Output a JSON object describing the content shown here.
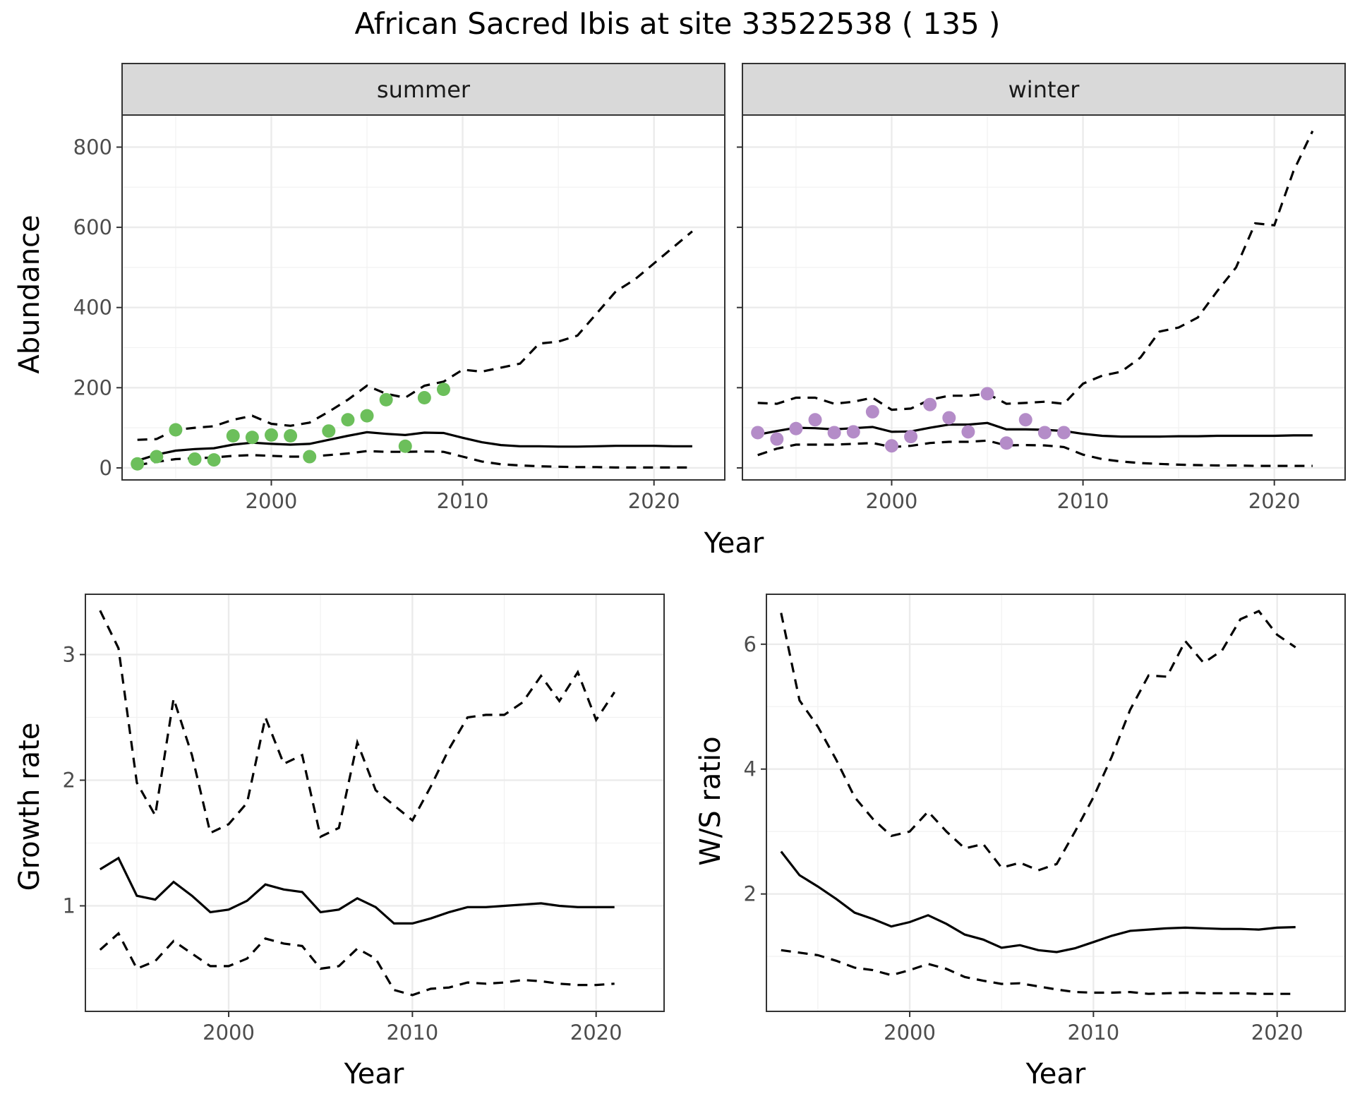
{
  "title": "African Sacred Ibis at site 33522538 ( 135 )",
  "chart_data": [
    {
      "id": "abundance-summer",
      "type": "line",
      "facet": "summer",
      "xlabel": "Year",
      "ylabel": "Abundance",
      "xlim": [
        1992.2,
        2023.7
      ],
      "ylim": [
        -30,
        880
      ],
      "xticks": [
        2000,
        2010,
        2020
      ],
      "yticks": [
        0,
        200,
        400,
        600,
        800
      ],
      "point_color": "#6cbf5b",
      "points": {
        "x": [
          1993,
          1994,
          1995,
          1996,
          1997,
          1998,
          1999,
          2000,
          2001,
          2002,
          2003,
          2004,
          2005,
          2006,
          2007,
          2008,
          2009
        ],
        "y": [
          10,
          28,
          95,
          22,
          20,
          80,
          76,
          82,
          80,
          28,
          92,
          120,
          130,
          170,
          54,
          175,
          196
        ]
      },
      "x": [
        1993,
        1994,
        1995,
        1996,
        1997,
        1998,
        1999,
        2000,
        2001,
        2002,
        2003,
        2004,
        2005,
        2006,
        2007,
        2008,
        2009,
        2010,
        2011,
        2012,
        2013,
        2014,
        2015,
        2016,
        2017,
        2018,
        2019,
        2020,
        2021,
        2022
      ],
      "series": [
        {
          "role": "estimate",
          "values": [
            18,
            33,
            43,
            47,
            49,
            58,
            63,
            60,
            58,
            60,
            70,
            80,
            89,
            85,
            82,
            88,
            87,
            75,
            64,
            57,
            54,
            54,
            53,
            53,
            54,
            55,
            55,
            55,
            54,
            54
          ]
        },
        {
          "role": "upper",
          "values": [
            70,
            72,
            95,
            100,
            104,
            120,
            130,
            110,
            105,
            113,
            140,
            170,
            205,
            185,
            175,
            205,
            215,
            245,
            240,
            250,
            260,
            310,
            315,
            330,
            385,
            440,
            470,
            510,
            550,
            590
          ]
        },
        {
          "role": "lower",
          "values": [
            7,
            15,
            22,
            24,
            26,
            30,
            32,
            30,
            28,
            28,
            32,
            36,
            42,
            40,
            40,
            41,
            40,
            28,
            16,
            9,
            6,
            4,
            3,
            2,
            2,
            1,
            1,
            1,
            1,
            1
          ]
        }
      ]
    },
    {
      "id": "abundance-winter",
      "type": "line",
      "facet": "winter",
      "xlabel": "Year",
      "ylabel": "Abundance",
      "xlim": [
        1992.2,
        2023.7
      ],
      "ylim": [
        -30,
        880
      ],
      "xticks": [
        2000,
        2010,
        2020
      ],
      "yticks": [
        0,
        200,
        400,
        600,
        800
      ],
      "point_color": "#b48cc8",
      "points": {
        "x": [
          1993,
          1994,
          1995,
          1996,
          1997,
          1998,
          1999,
          2000,
          2001,
          2002,
          2003,
          2004,
          2005,
          2006,
          2007,
          2008,
          2009
        ],
        "y": [
          88,
          72,
          98,
          120,
          88,
          90,
          140,
          55,
          78,
          158,
          125,
          90,
          185,
          62,
          120,
          88,
          88
        ]
      },
      "x": [
        1993,
        1994,
        1995,
        1996,
        1997,
        1998,
        1999,
        2000,
        2001,
        2002,
        2003,
        2004,
        2005,
        2006,
        2007,
        2008,
        2009,
        2010,
        2011,
        2012,
        2013,
        2014,
        2015,
        2016,
        2017,
        2018,
        2019,
        2020,
        2021,
        2022
      ],
      "series": [
        {
          "role": "estimate",
          "values": [
            83,
            92,
            100,
            99,
            96,
            99,
            102,
            90,
            91,
            100,
            108,
            108,
            112,
            96,
            96,
            95,
            92,
            85,
            80,
            78,
            78,
            78,
            79,
            79,
            80,
            80,
            80,
            80,
            81,
            81
          ]
        },
        {
          "role": "upper",
          "values": [
            162,
            160,
            175,
            175,
            160,
            165,
            175,
            145,
            148,
            170,
            180,
            180,
            185,
            160,
            162,
            165,
            160,
            210,
            230,
            240,
            275,
            340,
            350,
            375,
            440,
            500,
            610,
            605,
            740,
            840
          ]
        },
        {
          "role": "lower",
          "values": [
            32,
            48,
            58,
            58,
            58,
            60,
            62,
            52,
            55,
            62,
            65,
            65,
            68,
            56,
            57,
            56,
            52,
            33,
            22,
            16,
            12,
            10,
            8,
            7,
            6,
            6,
            5,
            5,
            5,
            5
          ]
        }
      ]
    },
    {
      "id": "growth-rate",
      "type": "line",
      "xlabel": "Year",
      "ylabel": "Growth rate",
      "xlim": [
        1992.2,
        2023.7
      ],
      "ylim": [
        0.16,
        3.48
      ],
      "xticks": [
        2000,
        2010,
        2020
      ],
      "yticks": [
        1,
        2,
        3
      ],
      "x": [
        1993,
        1994,
        1995,
        1996,
        1997,
        1998,
        1999,
        2000,
        2001,
        2002,
        2003,
        2004,
        2005,
        2006,
        2007,
        2008,
        2009,
        2010,
        2011,
        2012,
        2013,
        2014,
        2015,
        2016,
        2017,
        2018,
        2019,
        2020,
        2021
      ],
      "series": [
        {
          "role": "estimate",
          "values": [
            1.29,
            1.38,
            1.08,
            1.05,
            1.19,
            1.08,
            0.95,
            0.97,
            1.04,
            1.17,
            1.13,
            1.11,
            0.95,
            0.97,
            1.06,
            0.99,
            0.86,
            0.86,
            0.9,
            0.95,
            0.99,
            0.99,
            1.0,
            1.01,
            1.02,
            1.0,
            0.99,
            0.99,
            0.99
          ]
        },
        {
          "role": "upper",
          "values": [
            3.35,
            3.05,
            1.98,
            1.72,
            2.65,
            2.2,
            1.58,
            1.65,
            1.82,
            2.5,
            2.13,
            2.2,
            1.55,
            1.62,
            2.3,
            1.92,
            1.8,
            1.68,
            1.95,
            2.25,
            2.5,
            2.52,
            2.52,
            2.62,
            2.83,
            2.63,
            2.86,
            2.48,
            2.7
          ]
        },
        {
          "role": "lower",
          "values": [
            0.65,
            0.78,
            0.5,
            0.56,
            0.72,
            0.62,
            0.52,
            0.52,
            0.58,
            0.74,
            0.7,
            0.68,
            0.5,
            0.52,
            0.66,
            0.58,
            0.33,
            0.29,
            0.34,
            0.35,
            0.39,
            0.38,
            0.39,
            0.41,
            0.4,
            0.38,
            0.37,
            0.37,
            0.38
          ]
        }
      ]
    },
    {
      "id": "ws-ratio",
      "type": "line",
      "xlabel": "Year",
      "ylabel": "W/S ratio",
      "xlim": [
        1992.2,
        2023.7
      ],
      "ylim": [
        0.12,
        6.8
      ],
      "xticks": [
        2000,
        2010,
        2020
      ],
      "yticks": [
        2,
        4,
        6
      ],
      "x": [
        1993,
        1994,
        1995,
        1996,
        1997,
        1998,
        1999,
        2000,
        2001,
        2002,
        2003,
        2004,
        2005,
        2006,
        2007,
        2008,
        2009,
        2010,
        2011,
        2012,
        2013,
        2014,
        2015,
        2016,
        2017,
        2018,
        2019,
        2020,
        2021
      ],
      "series": [
        {
          "role": "estimate",
          "values": [
            2.68,
            2.3,
            2.12,
            1.92,
            1.7,
            1.6,
            1.48,
            1.55,
            1.66,
            1.52,
            1.35,
            1.27,
            1.14,
            1.18,
            1.1,
            1.07,
            1.13,
            1.23,
            1.33,
            1.41,
            1.43,
            1.45,
            1.46,
            1.45,
            1.44,
            1.44,
            1.43,
            1.46,
            1.47
          ]
        },
        {
          "role": "upper",
          "values": [
            6.5,
            5.1,
            4.68,
            4.15,
            3.55,
            3.2,
            2.93,
            3.0,
            3.32,
            3.0,
            2.73,
            2.8,
            2.42,
            2.5,
            2.38,
            2.48,
            3.0,
            3.55,
            4.2,
            4.95,
            5.5,
            5.48,
            6.05,
            5.7,
            5.9,
            6.4,
            6.53,
            6.15,
            5.95
          ]
        },
        {
          "role": "lower",
          "values": [
            1.1,
            1.06,
            1.02,
            0.93,
            0.82,
            0.78,
            0.7,
            0.78,
            0.88,
            0.8,
            0.67,
            0.61,
            0.56,
            0.57,
            0.52,
            0.47,
            0.43,
            0.42,
            0.42,
            0.43,
            0.4,
            0.41,
            0.42,
            0.41,
            0.41,
            0.41,
            0.4,
            0.4,
            0.4
          ]
        }
      ]
    }
  ]
}
